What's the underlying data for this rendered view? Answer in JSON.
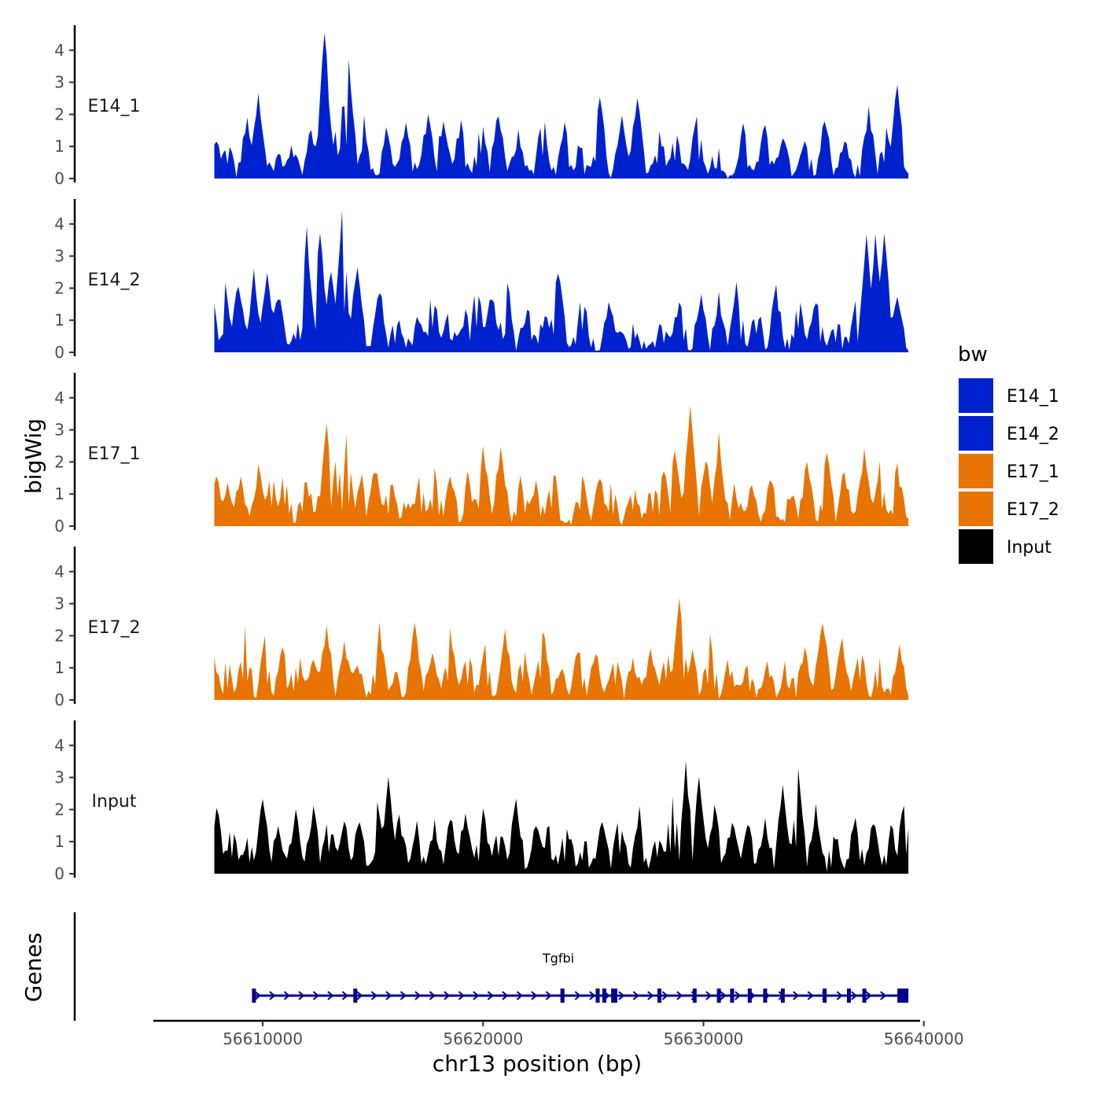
{
  "chart_data": {
    "type": "area",
    "subtype": "genome-coverage-tracks",
    "xlabel": "chr13 position (bp)",
    "ylabel": "bigWig",
    "gene_panel_label": "Genes",
    "xlim": [
      56605000,
      56641000
    ],
    "data_range": [
      56607800,
      56639300
    ],
    "x_ticks": [
      56610000,
      56620000,
      56630000,
      56640000
    ],
    "x_tick_labels": [
      "56610000",
      "56620000",
      "56630000",
      "56640000"
    ],
    "ylim": [
      0,
      4.8
    ],
    "y_ticks": [
      0,
      1,
      2,
      3,
      4
    ],
    "y_tick_labels": [
      "0",
      "1",
      "2",
      "3",
      "4"
    ],
    "legend": {
      "title": "bw",
      "entries": [
        {
          "label": "E14_1",
          "color": "#0021CE"
        },
        {
          "label": "E14_2",
          "color": "#0021CE"
        },
        {
          "label": "E17_1",
          "color": "#E87404"
        },
        {
          "label": "E17_2",
          "color": "#E87404"
        },
        {
          "label": "Input",
          "color": "#000000"
        }
      ]
    },
    "series": [
      {
        "name": "E14_1",
        "color": "#0021CE",
        "peaks": [
          [
            56607900,
            1.1
          ],
          [
            56608400,
            1.0
          ],
          [
            56609300,
            1.6
          ],
          [
            56609800,
            2.5
          ],
          [
            56610600,
            0.6
          ],
          [
            56611300,
            0.7
          ],
          [
            56612200,
            1.4
          ],
          [
            56612800,
            4.5
          ],
          [
            56613500,
            2.6
          ],
          [
            56613900,
            3.6
          ],
          [
            56614500,
            2.3
          ],
          [
            56615600,
            1.4
          ],
          [
            56616500,
            1.4
          ],
          [
            56617500,
            1.8
          ],
          [
            56618200,
            1.7
          ],
          [
            56619000,
            1.6
          ],
          [
            56619900,
            1.8
          ],
          [
            56620700,
            1.9
          ],
          [
            56621600,
            1.1
          ],
          [
            56622700,
            1.8
          ],
          [
            56623700,
            1.5
          ],
          [
            56624300,
            1.0
          ],
          [
            56625300,
            2.4
          ],
          [
            56626300,
            1.9
          ],
          [
            56627000,
            2.3
          ],
          [
            56628000,
            1.3
          ],
          [
            56628700,
            1.2
          ],
          [
            56629700,
            1.9
          ],
          [
            56630600,
            0.8
          ],
          [
            56631800,
            1.3
          ],
          [
            56632800,
            1.5
          ],
          [
            56633600,
            1.0
          ],
          [
            56634600,
            1.1
          ],
          [
            56635500,
            1.6
          ],
          [
            56636400,
            0.9
          ],
          [
            56637500,
            1.9
          ],
          [
            56638300,
            1.5
          ],
          [
            56638800,
            2.8
          ]
        ]
      },
      {
        "name": "E14_2",
        "color": "#0021CE",
        "peaks": [
          [
            56607800,
            1.2
          ],
          [
            56608300,
            1.9
          ],
          [
            56608900,
            2.0
          ],
          [
            56609600,
            2.2
          ],
          [
            56610200,
            2.1
          ],
          [
            56610700,
            1.6
          ],
          [
            56611600,
            0.5
          ],
          [
            56612000,
            3.5
          ],
          [
            56612600,
            3.6
          ],
          [
            56613100,
            2.5
          ],
          [
            56613600,
            4.2
          ],
          [
            56614300,
            2.6
          ],
          [
            56615300,
            1.8
          ],
          [
            56616100,
            0.8
          ],
          [
            56617000,
            0.9
          ],
          [
            56617700,
            1.9
          ],
          [
            56618400,
            1.2
          ],
          [
            56619200,
            0.9
          ],
          [
            56619700,
            2.2
          ],
          [
            56620400,
            1.6
          ],
          [
            56621100,
            1.9
          ],
          [
            56622000,
            1.2
          ],
          [
            56622800,
            0.9
          ],
          [
            56623400,
            2.4
          ],
          [
            56624500,
            1.7
          ],
          [
            56625700,
            1.3
          ],
          [
            56626300,
            0.3
          ],
          [
            56626800,
            0.5
          ],
          [
            56628100,
            0.6
          ],
          [
            56628900,
            1.4
          ],
          [
            56629900,
            1.4
          ],
          [
            56630700,
            1.5
          ],
          [
            56631500,
            2.0
          ],
          [
            56632400,
            1.3
          ],
          [
            56633300,
            1.7
          ],
          [
            56634300,
            1.7
          ],
          [
            56635100,
            1.5
          ],
          [
            56636000,
            0.9
          ],
          [
            56636900,
            1.2
          ],
          [
            56637400,
            3.5
          ],
          [
            56637800,
            3.4
          ],
          [
            56638200,
            3.5
          ],
          [
            56638800,
            1.7
          ]
        ]
      },
      {
        "name": "E17_1",
        "color": "#E87404",
        "peaks": [
          [
            56607900,
            1.2
          ],
          [
            56608400,
            1.1
          ],
          [
            56609000,
            1.2
          ],
          [
            56609800,
            1.5
          ],
          [
            56610400,
            1.5
          ],
          [
            56611000,
            1.6
          ],
          [
            56611900,
            1.3
          ],
          [
            56612300,
            1.1
          ],
          [
            56612900,
            3.0
          ],
          [
            56613400,
            2.2
          ],
          [
            56613800,
            2.4
          ],
          [
            56614500,
            1.2
          ],
          [
            56615100,
            1.6
          ],
          [
            56615800,
            1.2
          ],
          [
            56616500,
            0.5
          ],
          [
            56617100,
            1.2
          ],
          [
            56617800,
            1.6
          ],
          [
            56618500,
            1.4
          ],
          [
            56619300,
            1.4
          ],
          [
            56620000,
            2.2
          ],
          [
            56620800,
            2.3
          ],
          [
            56621700,
            1.4
          ],
          [
            56622400,
            1.2
          ],
          [
            56623200,
            1.6
          ],
          [
            56624500,
            1.3
          ],
          [
            56625300,
            1.2
          ],
          [
            56625800,
            1.2
          ],
          [
            56626800,
            1.1
          ],
          [
            56627700,
            1.2
          ],
          [
            56628200,
            1.7
          ],
          [
            56628700,
            2.3
          ],
          [
            56629400,
            3.4
          ],
          [
            56630100,
            2.0
          ],
          [
            56630700,
            2.5
          ],
          [
            56631400,
            1.0
          ],
          [
            56632200,
            1.2
          ],
          [
            56633100,
            1.3
          ],
          [
            56634000,
            0.9
          ],
          [
            56634700,
            1.7
          ],
          [
            56635600,
            2.1
          ],
          [
            56636400,
            1.5
          ],
          [
            56637300,
            2.0
          ],
          [
            56638000,
            1.6
          ],
          [
            56638800,
            1.6
          ]
        ]
      },
      {
        "name": "E17_2",
        "color": "#E87404",
        "peaks": [
          [
            56607800,
            1.1
          ],
          [
            56608400,
            1.0
          ],
          [
            56609200,
            1.9
          ],
          [
            56610100,
            1.6
          ],
          [
            56610900,
            1.4
          ],
          [
            56611600,
            1.3
          ],
          [
            56612300,
            1.2
          ],
          [
            56612900,
            2.1
          ],
          [
            56613700,
            1.5
          ],
          [
            56614300,
            0.9
          ],
          [
            56615300,
            2.0
          ],
          [
            56616000,
            0.6
          ],
          [
            56616900,
            2.2
          ],
          [
            56617700,
            1.4
          ],
          [
            56618500,
            1.8
          ],
          [
            56619300,
            1.3
          ],
          [
            56620100,
            1.4
          ],
          [
            56621000,
            1.8
          ],
          [
            56621800,
            1.4
          ],
          [
            56622700,
            2.0
          ],
          [
            56623500,
            0.7
          ],
          [
            56624300,
            1.4
          ],
          [
            56625100,
            1.2
          ],
          [
            56626000,
            1.2
          ],
          [
            56626800,
            1.1
          ],
          [
            56627600,
            1.3
          ],
          [
            56628300,
            1.5
          ],
          [
            56628900,
            3.1
          ],
          [
            56629500,
            1.2
          ],
          [
            56630300,
            1.7
          ],
          [
            56631100,
            0.9
          ],
          [
            56632000,
            0.9
          ],
          [
            56632900,
            0.8
          ],
          [
            56633800,
            1.2
          ],
          [
            56634600,
            1.4
          ],
          [
            56635400,
            2.4
          ],
          [
            56636300,
            1.6
          ],
          [
            56637100,
            1.6
          ],
          [
            56638000,
            1.0
          ],
          [
            56638900,
            1.3
          ]
        ]
      },
      {
        "name": "Input",
        "color": "#000000",
        "peaks": [
          [
            56607900,
            1.9
          ],
          [
            56608600,
            1.2
          ],
          [
            56609300,
            0.9
          ],
          [
            56610000,
            2.2
          ],
          [
            56610700,
            1.2
          ],
          [
            56611500,
            1.7
          ],
          [
            56612300,
            1.8
          ],
          [
            56613000,
            1.5
          ],
          [
            56613700,
            1.4
          ],
          [
            56614400,
            1.6
          ],
          [
            56615200,
            2.1
          ],
          [
            56615700,
            2.8
          ],
          [
            56616200,
            1.5
          ],
          [
            56617000,
            1.4
          ],
          [
            56617800,
            1.3
          ],
          [
            56618500,
            1.6
          ],
          [
            56619200,
            1.7
          ],
          [
            56620000,
            1.8
          ],
          [
            56620700,
            1.5
          ],
          [
            56621500,
            2.2
          ],
          [
            56622400,
            1.3
          ],
          [
            56623000,
            1.4
          ],
          [
            56623800,
            1.3
          ],
          [
            56624600,
            1.0
          ],
          [
            56625400,
            1.3
          ],
          [
            56626200,
            1.5
          ],
          [
            56627100,
            1.7
          ],
          [
            56627900,
            1.2
          ],
          [
            56628600,
            2.4
          ],
          [
            56629200,
            3.1
          ],
          [
            56629800,
            2.7
          ],
          [
            56630500,
            1.9
          ],
          [
            56631300,
            1.4
          ],
          [
            56632000,
            1.5
          ],
          [
            56632800,
            1.4
          ],
          [
            56633600,
            2.6
          ],
          [
            56634300,
            3.1
          ],
          [
            56635100,
            1.9
          ],
          [
            56636000,
            1.0
          ],
          [
            56636900,
            1.5
          ],
          [
            56637700,
            1.4
          ],
          [
            56638500,
            1.3
          ],
          [
            56639100,
            1.9
          ]
        ]
      }
    ],
    "gene": {
      "name": "Tgfbi",
      "strand": "+",
      "color": "#00008B",
      "start": 56609600,
      "end": 56639300,
      "exons": [
        56609600,
        56614200,
        56623600,
        56625200,
        56625500,
        56625900,
        56626000,
        56628000,
        56629600,
        56630700,
        56631300,
        56632100,
        56632800,
        56633600,
        56635500,
        56636600,
        56637300
      ],
      "last_exon": [
        56638800,
        56639300
      ]
    }
  }
}
